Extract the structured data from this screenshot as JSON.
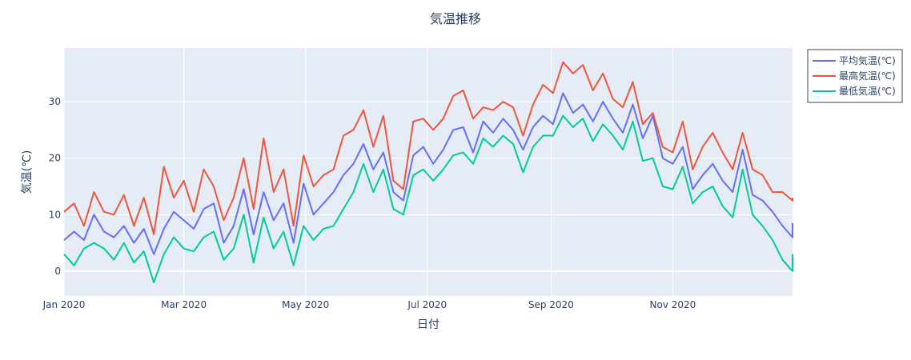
{
  "chart_data": {
    "type": "line",
    "title": "気温推移",
    "xlabel": "日付",
    "ylabel": "気温(℃)",
    "x_tick_labels": [
      "Jan 2020",
      "Mar 2020",
      "May 2020",
      "Jul 2020",
      "Sep 2020",
      "Nov 2020"
    ],
    "x_tick_days": [
      0,
      60,
      121,
      182,
      244,
      305
    ],
    "x_range_days": [
      0,
      365
    ],
    "y_ticks": [
      0,
      10,
      20,
      30
    ],
    "ylim": [
      -4.4,
      39.5
    ],
    "grid": true,
    "legend_position": "top-right-outside",
    "sample_interval_days": 5,
    "x_start": "2020-01-01",
    "series": [
      {
        "name": "平均気温(℃)",
        "color": "#636efa",
        "values": [
          5.5,
          7.0,
          5.5,
          10.0,
          7.0,
          6.0,
          8.0,
          5.0,
          7.5,
          3.0,
          7.5,
          10.5,
          9.0,
          7.5,
          11.0,
          12.0,
          5.0,
          8.0,
          14.5,
          6.5,
          14.0,
          9.0,
          12.0,
          5.0,
          15.5,
          10.0,
          12.0,
          14.0,
          17.0,
          19.0,
          22.5,
          18.0,
          21.0,
          14.0,
          12.5,
          20.5,
          22.0,
          19.0,
          21.5,
          25.0,
          25.5,
          21.0,
          26.5,
          24.5,
          27.0,
          25.0,
          21.5,
          25.5,
          27.5,
          26.0,
          31.5,
          28.0,
          29.5,
          26.5,
          30.0,
          27.0,
          24.5,
          29.5,
          23.5,
          27.5,
          20.0,
          19.0,
          22.0,
          14.5,
          17.0,
          19.0,
          16.0,
          14.0,
          21.5,
          13.5,
          12.5,
          10.5,
          8.0,
          6.0,
          8.5
        ]
      },
      {
        "name": "最高気温(℃)",
        "color": "#ef553b",
        "values": [
          10.5,
          12.0,
          8.0,
          14.0,
          10.5,
          10.0,
          13.5,
          8.0,
          13.0,
          6.5,
          18.5,
          13.0,
          16.0,
          10.5,
          18.0,
          15.0,
          9.0,
          13.0,
          20.0,
          11.0,
          23.5,
          14.0,
          18.0,
          8.0,
          20.5,
          15.0,
          17.0,
          18.0,
          24.0,
          25.0,
          28.5,
          22.0,
          27.5,
          16.0,
          14.5,
          26.5,
          27.0,
          25.0,
          27.0,
          31.0,
          32.0,
          27.0,
          29.0,
          28.5,
          30.0,
          29.0,
          24.0,
          29.5,
          33.0,
          31.5,
          37.0,
          35.0,
          36.5,
          32.0,
          35.0,
          30.5,
          29.0,
          33.5,
          26.0,
          28.0,
          22.0,
          21.0,
          26.5,
          18.0,
          22.0,
          24.5,
          21.0,
          18.0,
          24.5,
          18.0,
          17.0,
          14.0,
          14.0,
          12.5,
          13.0
        ]
      },
      {
        "name": "最低気温(℃)",
        "color": "#00cc96",
        "values": [
          3.0,
          1.0,
          4.0,
          5.0,
          4.0,
          2.0,
          5.0,
          1.5,
          3.5,
          -2.0,
          3.0,
          6.0,
          4.0,
          3.5,
          6.0,
          7.0,
          2.0,
          4.0,
          10.0,
          1.5,
          9.5,
          4.0,
          7.0,
          1.0,
          8.0,
          5.5,
          7.5,
          8.0,
          11.0,
          14.0,
          19.0,
          14.0,
          18.0,
          11.0,
          10.0,
          17.0,
          18.0,
          16.0,
          18.0,
          20.5,
          21.0,
          19.0,
          23.5,
          22.0,
          24.0,
          22.5,
          17.5,
          22.0,
          24.0,
          24.0,
          27.5,
          25.5,
          27.0,
          23.0,
          26.0,
          24.0,
          21.5,
          26.5,
          19.5,
          20.0,
          15.0,
          14.5,
          18.5,
          12.0,
          14.0,
          15.0,
          11.5,
          9.5,
          18.0,
          10.0,
          8.0,
          5.5,
          2.0,
          0.0,
          3.0
        ]
      }
    ]
  },
  "legend": {
    "items": [
      "平均気温(℃)",
      "最高気温(℃)",
      "最低気温(℃)"
    ]
  }
}
